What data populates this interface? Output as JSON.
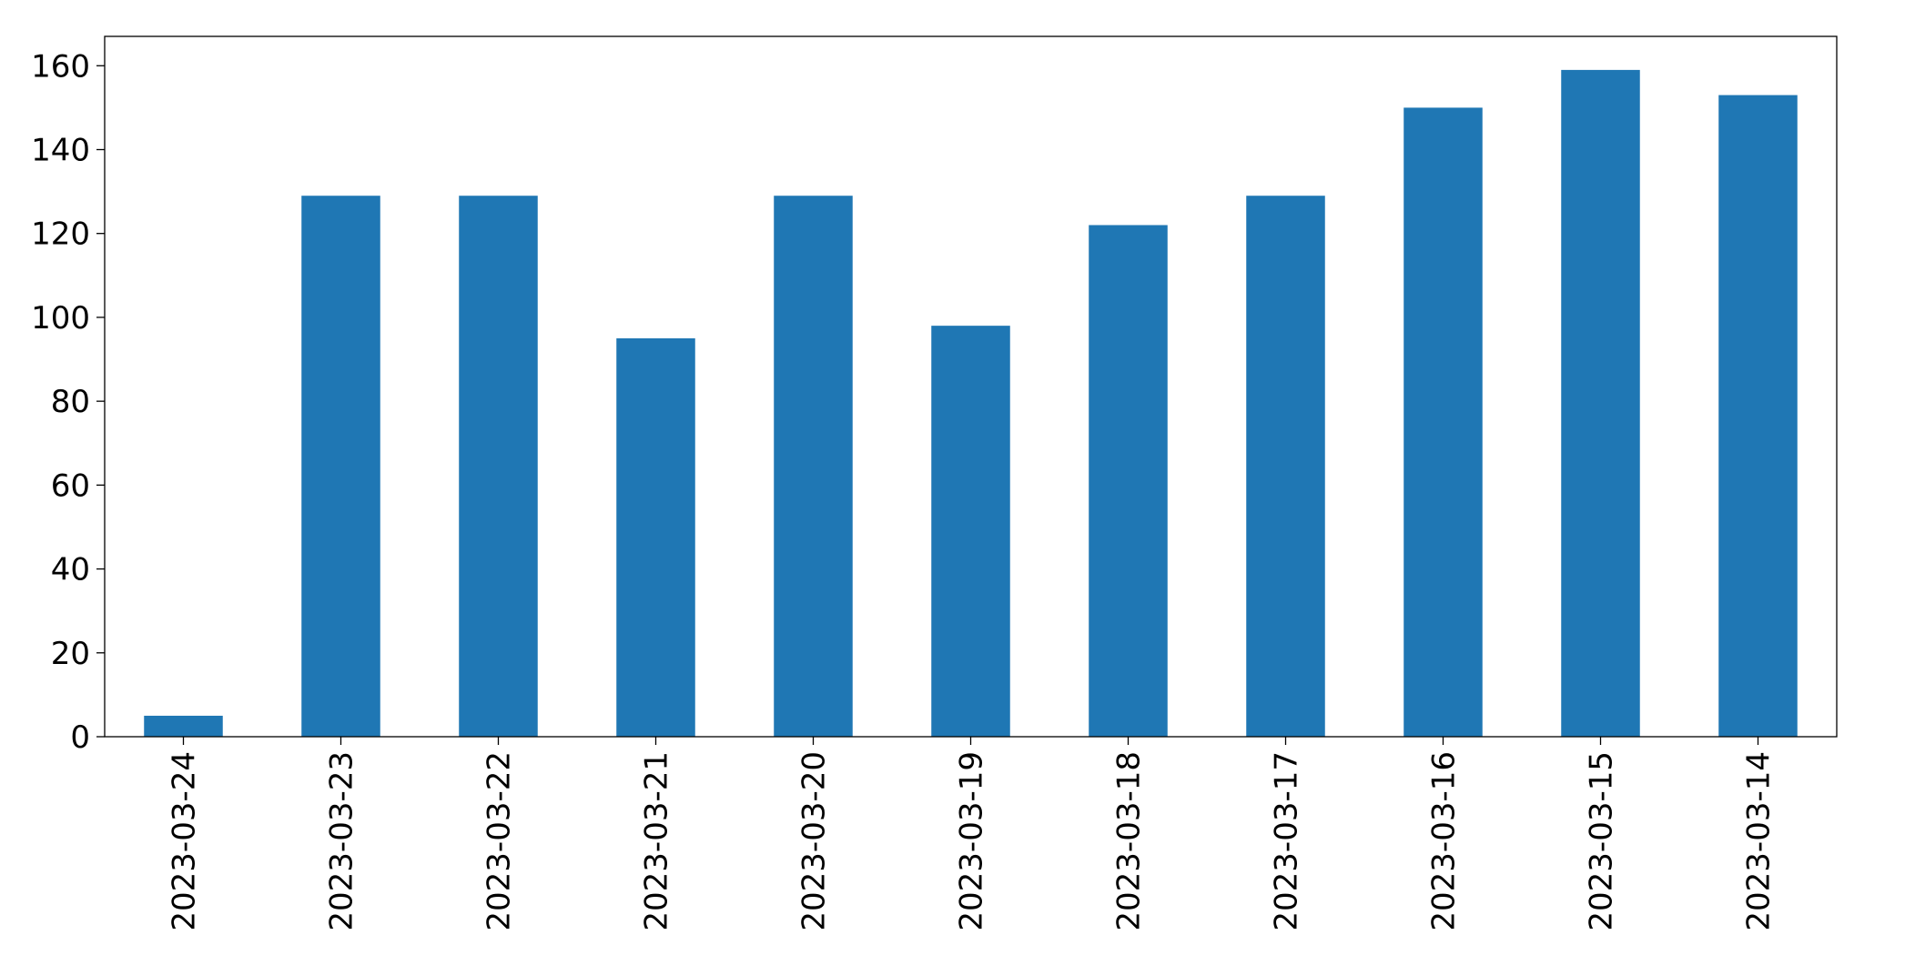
{
  "chart_data": {
    "type": "bar",
    "title": "",
    "xlabel": "",
    "ylabel": "",
    "categories": [
      "2023-03-24",
      "2023-03-23",
      "2023-03-22",
      "2023-03-21",
      "2023-03-20",
      "2023-03-19",
      "2023-03-18",
      "2023-03-17",
      "2023-03-16",
      "2023-03-15",
      "2023-03-14"
    ],
    "values": [
      5,
      129,
      129,
      95,
      129,
      98,
      122,
      129,
      150,
      159,
      153
    ],
    "ylim": [
      0,
      167
    ],
    "yticks": [
      0,
      20,
      40,
      60,
      80,
      100,
      120,
      140,
      160
    ],
    "bar_color": "#1f77b4",
    "grid": false,
    "legend": "none"
  }
}
